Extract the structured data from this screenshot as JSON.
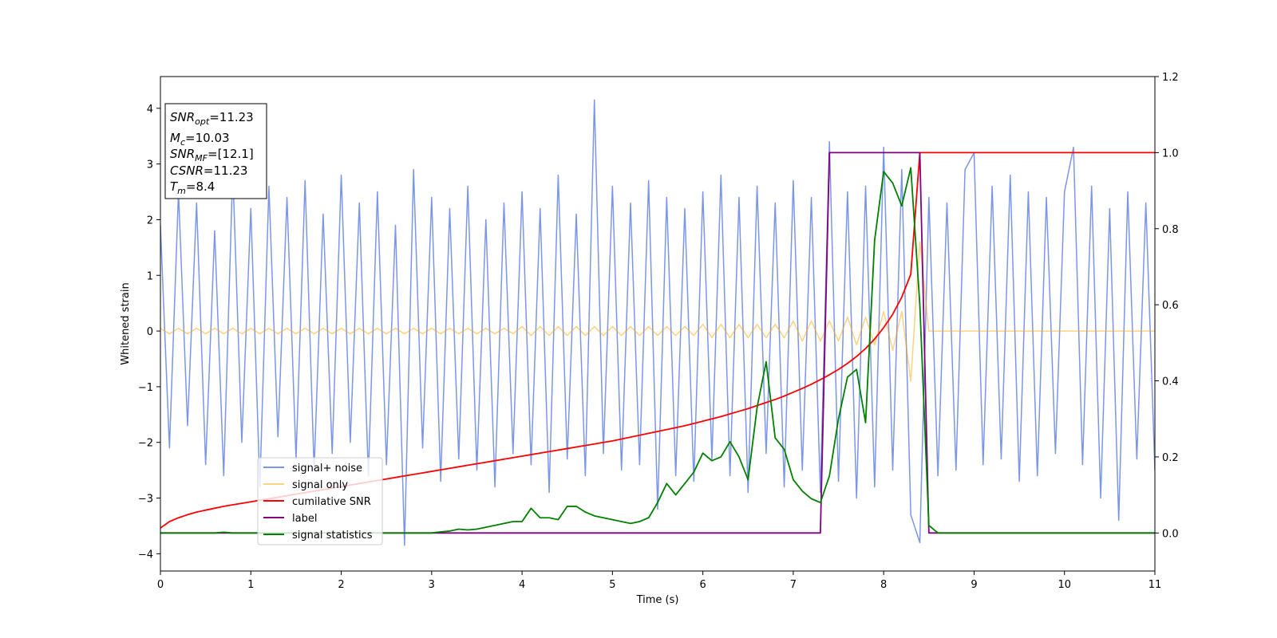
{
  "chart_data": {
    "type": "line",
    "xlabel": "Time (s)",
    "ylabel": "Whitened strain",
    "xlim": [
      0,
      11
    ],
    "ylim": [
      -4.31,
      4.57
    ],
    "y2lim": [
      -0.1,
      1.2
    ],
    "xticks": [
      0,
      1,
      2,
      3,
      4,
      5,
      6,
      7,
      8,
      9,
      10,
      11
    ],
    "yticks": [
      {
        "value": -4,
        "label": "−4"
      },
      {
        "value": -3,
        "label": "−3"
      },
      {
        "value": -2,
        "label": "−2"
      },
      {
        "value": -1,
        "label": "−1"
      },
      0,
      1,
      2,
      3,
      4
    ],
    "y2ticks": [
      {
        "value": 0,
        "label": "0.0"
      },
      0.2,
      0.4,
      0.6,
      0.8,
      {
        "value": 1,
        "label": "1.0"
      },
      1.2
    ],
    "x": [
      0,
      0.1,
      0.2,
      0.3,
      0.4,
      0.5,
      0.6,
      0.7,
      0.8,
      0.9,
      1,
      1.1,
      1.2,
      1.3,
      1.4,
      1.5,
      1.6,
      1.7,
      1.8,
      1.9,
      2,
      2.1,
      2.2,
      2.3,
      2.4,
      2.5,
      2.6,
      2.7,
      2.8,
      2.9,
      3,
      3.1,
      3.2,
      3.3,
      3.4,
      3.5,
      3.6,
      3.7,
      3.8,
      3.9,
      4,
      4.1,
      4.2,
      4.3,
      4.4,
      4.5,
      4.6,
      4.7,
      4.8,
      4.9,
      5,
      5.1,
      5.2,
      5.3,
      5.4,
      5.5,
      5.6,
      5.7,
      5.8,
      5.9,
      6,
      6.1,
      6.2,
      6.3,
      6.4,
      6.5,
      6.6,
      6.7,
      6.8,
      6.9,
      7,
      7.1,
      7.2,
      7.3,
      7.4,
      7.5,
      7.6,
      7.7,
      7.8,
      7.9,
      8,
      8.1,
      8.2,
      8.3,
      8.4,
      8.5,
      8.6,
      8.7,
      8.8,
      8.9,
      9,
      9.1,
      9.2,
      9.3,
      9.4,
      9.5,
      9.6,
      9.7,
      9.8,
      9.9,
      10,
      10.1,
      10.2,
      10.3,
      10.4,
      10.5,
      10.6,
      10.7,
      10.8,
      10.9,
      11
    ],
    "series": [
      {
        "name": "signal+ noise",
        "color": "#7b96e8",
        "values": [
          1.9,
          -2.1,
          2.5,
          -1.7,
          2.3,
          -2.4,
          1.8,
          -2.6,
          2.9,
          -2.0,
          2.2,
          -2.8,
          2.6,
          -1.9,
          2.4,
          -2.3,
          2.7,
          -2.5,
          2.1,
          -2.2,
          2.8,
          -2.0,
          2.3,
          -2.6,
          2.5,
          -2.4,
          1.9,
          -3.85,
          2.9,
          -2.1,
          2.4,
          -2.7,
          2.2,
          -2.3,
          2.6,
          -2.5,
          2.0,
          -2.8,
          2.3,
          -2.2,
          2.5,
          -2.4,
          2.2,
          -2.9,
          2.8,
          -2.3,
          2.1,
          -2.6,
          4.15,
          -2.2,
          2.6,
          -2.5,
          2.3,
          -2.4,
          2.7,
          -3.2,
          2.4,
          -2.6,
          2.2,
          -2.7,
          2.5,
          -2.3,
          2.8,
          -2.6,
          2.4,
          -2.9,
          2.6,
          -2.2,
          2.3,
          -2.8,
          2.7,
          -2.5,
          2.4,
          -2.9,
          3.4,
          -2.7,
          2.5,
          -3.0,
          2.6,
          -2.8,
          3.3,
          -2.5,
          2.9,
          -3.3,
          -3.8,
          2.4,
          -2.6,
          2.3,
          -2.5,
          2.9,
          3.2,
          -2.4,
          2.6,
          -2.3,
          2.8,
          -2.7,
          2.5,
          -2.6,
          2.4,
          -2.2,
          2.5,
          3.3,
          -2.4,
          2.6,
          -3.0,
          2.2,
          -3.4,
          2.5,
          -2.3,
          2.3,
          -2.5
        ]
      },
      {
        "name": "signal only",
        "color": "orange",
        "values": [
          0.05,
          -0.05,
          0.05,
          -0.05,
          0.05,
          -0.05,
          0.05,
          -0.05,
          0.05,
          -0.05,
          0.05,
          -0.05,
          0.05,
          -0.05,
          0.05,
          -0.05,
          0.05,
          -0.05,
          0.05,
          -0.05,
          0.05,
          -0.05,
          0.05,
          -0.05,
          0.05,
          -0.05,
          0.05,
          -0.05,
          0.05,
          -0.05,
          0.05,
          -0.05,
          0.05,
          -0.05,
          0.05,
          -0.05,
          0.05,
          -0.05,
          0.05,
          -0.05,
          0.08,
          -0.08,
          0.08,
          -0.08,
          0.08,
          -0.08,
          0.08,
          -0.08,
          0.08,
          -0.08,
          0.08,
          -0.08,
          0.08,
          -0.08,
          0.08,
          -0.08,
          0.08,
          -0.08,
          0.08,
          -0.08,
          0.12,
          -0.12,
          0.12,
          -0.12,
          0.12,
          -0.12,
          0.12,
          -0.12,
          0.12,
          -0.12,
          0.18,
          -0.18,
          0.18,
          -0.18,
          0.18,
          -0.18,
          0.25,
          -0.25,
          0.25,
          -0.25,
          0.35,
          -0.35,
          0.35,
          -0.9,
          1.6,
          0,
          0,
          0,
          0,
          0,
          0,
          0,
          0,
          0,
          0,
          0,
          0,
          0,
          0,
          0,
          0,
          0,
          0,
          0,
          0,
          0,
          0,
          0,
          0,
          0,
          0
        ]
      },
      {
        "name": "cumilative SNR",
        "color": "red",
        "axis": "y2",
        "values": [
          0.013,
          0.03,
          0.04,
          0.048,
          0.055,
          0.06,
          0.065,
          0.07,
          0.074,
          0.078,
          0.082,
          0.086,
          0.09,
          0.094,
          0.098,
          0.102,
          0.106,
          0.11,
          0.114,
          0.118,
          0.122,
          0.126,
          0.13,
          0.134,
          0.138,
          0.142,
          0.146,
          0.15,
          0.154,
          0.158,
          0.162,
          0.166,
          0.17,
          0.174,
          0.178,
          0.182,
          0.186,
          0.19,
          0.194,
          0.198,
          0.202,
          0.206,
          0.21,
          0.214,
          0.218,
          0.222,
          0.226,
          0.23,
          0.234,
          0.238,
          0.242,
          0.247,
          0.252,
          0.257,
          0.262,
          0.267,
          0.272,
          0.277,
          0.282,
          0.288,
          0.294,
          0.3,
          0.306,
          0.313,
          0.32,
          0.327,
          0.335,
          0.343,
          0.351,
          0.36,
          0.37,
          0.38,
          0.391,
          0.403,
          0.416,
          0.43,
          0.446,
          0.464,
          0.485,
          0.51,
          0.54,
          0.575,
          0.62,
          0.68,
          1,
          1,
          1,
          1,
          1,
          1,
          1,
          1,
          1,
          1,
          1,
          1,
          1,
          1,
          1,
          1,
          1,
          1,
          1,
          1,
          1,
          1,
          1,
          1,
          1,
          1,
          1
        ]
      },
      {
        "name": "label",
        "color": "purple",
        "axis": "y2",
        "values": [
          0,
          0,
          0,
          0,
          0,
          0,
          0,
          0,
          0,
          0,
          0,
          0,
          0,
          0,
          0,
          0,
          0,
          0,
          0,
          0,
          0,
          0,
          0,
          0,
          0,
          0,
          0,
          0,
          0,
          0,
          0,
          0,
          0,
          0,
          0,
          0,
          0,
          0,
          0,
          0,
          0,
          0,
          0,
          0,
          0,
          0,
          0,
          0,
          0,
          0,
          0,
          0,
          0,
          0,
          0,
          0,
          0,
          0,
          0,
          0,
          0,
          0,
          0,
          0,
          0,
          0,
          0,
          0,
          0,
          0,
          0,
          0,
          0,
          0,
          1,
          1,
          1,
          1,
          1,
          1,
          1,
          1,
          1,
          1,
          1,
          0,
          0,
          0,
          0,
          0,
          0,
          0,
          0,
          0,
          0,
          0,
          0,
          0,
          0,
          0,
          0,
          0,
          0,
          0,
          0,
          0,
          0,
          0,
          0,
          0,
          0
        ]
      },
      {
        "name": "signal statistics",
        "color": "green",
        "axis": "y2",
        "values": [
          0,
          0,
          0,
          0,
          0,
          0,
          0,
          0.002,
          0,
          0,
          0,
          0,
          0,
          0,
          0,
          0,
          0,
          0,
          0,
          0,
          0,
          0,
          0,
          0,
          0,
          0,
          0,
          0,
          0,
          0,
          0,
          0.003,
          0.005,
          0.01,
          0.008,
          0.01,
          0.015,
          0.02,
          0.025,
          0.03,
          0.03,
          0.065,
          0.04,
          0.04,
          0.035,
          0.07,
          0.07,
          0.055,
          0.045,
          0.04,
          0.035,
          0.03,
          0.025,
          0.03,
          0.04,
          0.08,
          0.13,
          0.1,
          0.13,
          0.16,
          0.21,
          0.19,
          0.2,
          0.24,
          0.2,
          0.14,
          0.33,
          0.45,
          0.25,
          0.22,
          0.14,
          0.11,
          0.09,
          0.08,
          0.15,
          0.3,
          0.41,
          0.43,
          0.29,
          0.77,
          0.95,
          0.92,
          0.86,
          0.96,
          0.6,
          0.02,
          0,
          0,
          0,
          0,
          0,
          0,
          0,
          0,
          0,
          0,
          0,
          0,
          0,
          0,
          0,
          0,
          0,
          0,
          0,
          0,
          0,
          0,
          0,
          0,
          0
        ]
      }
    ],
    "annotation": [
      {
        "main": "SNR",
        "sub": "opt",
        "rest": "=11.23"
      },
      {
        "main": "M",
        "sub": "c",
        "rest": "=10.03"
      },
      {
        "main": "SNR",
        "sub": "MF",
        "rest": "=[12.1]"
      },
      {
        "main": "CSNR",
        "sub": null,
        "rest": "=11.23"
      },
      {
        "main": "T",
        "sub": "m",
        "rest": "=8.4"
      }
    ]
  }
}
